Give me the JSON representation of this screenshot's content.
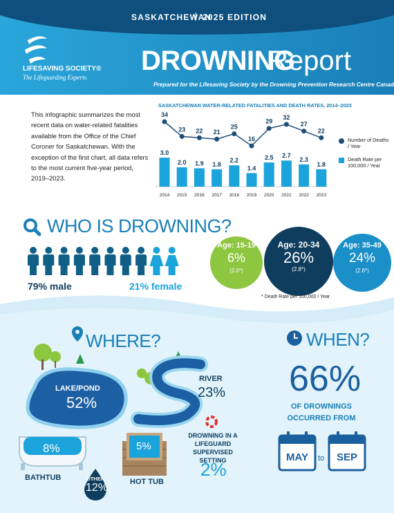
{
  "header": {
    "region": "SASKATCHEWAN",
    "edition": "2025 EDITION"
  },
  "logo": {
    "name": "LIFESAVING SOCIETY®",
    "tagline": "The Lifeguarding Experts"
  },
  "title": {
    "main": "DROWNING",
    "sub": "Report"
  },
  "subtitle": "Prepared for the Lifesaving Society by the Drowning Prevention Research Centre Canada",
  "intro": "This infographic summarizes the most recent data on water-related fatalities available from the Office of the Chief Coroner for Saskatchewan. With the exception of the first chart, all data refers to the most current five-year period, 2019–2023.",
  "chart_data": {
    "type": "combo",
    "title": "SASKATCHEWAN WATER-RELATED FATALITIES AND DEATH RATES, 2014–2023",
    "categories": [
      "2014",
      "2015",
      "2016",
      "2017",
      "2018",
      "2019",
      "2020",
      "2021",
      "2022",
      "2023"
    ],
    "series": [
      {
        "name": "Number of Deaths / Year",
        "type": "line",
        "axis": "y2",
        "color": "#1d4f78",
        "values": [
          34,
          23,
          22,
          21,
          25,
          16,
          29,
          32,
          27,
          22
        ]
      },
      {
        "name": "Death Rate per 100,000 / Year",
        "type": "bar",
        "color": "#1ba3db",
        "values": [
          3,
          2,
          1.9,
          1.8,
          2.2,
          1.4,
          2.5,
          2.7,
          2.3,
          1.8
        ],
        "value_labels": [
          "3.0",
          "2.0",
          "1.9",
          "1.8",
          "2.2",
          "1.4",
          "2.5",
          "2.7",
          "2.3",
          "1.8"
        ]
      }
    ]
  },
  "who": {
    "heading": "WHO IS DROWNING?",
    "male": "79% male",
    "female": "21% female",
    "ages": [
      {
        "label": "Age: 15-19",
        "share": "6%",
        "rate": "(2.0*)"
      },
      {
        "label": "Age: 20-34",
        "share": "26%",
        "rate": "(2.8*)"
      },
      {
        "label": "Age: 35-49",
        "share": "24%",
        "rate": "(2.6*)"
      }
    ],
    "footnote": "* Death Rate per 100,000 / Year"
  },
  "where": {
    "heading": "WHERE?",
    "lake": {
      "label": "LAKE/POND",
      "share": "52%"
    },
    "river": {
      "label": "RIVER",
      "share": "23%"
    },
    "bathtub": {
      "label": "BATHTUB",
      "share": "8%"
    },
    "other": {
      "label": "OTHER",
      "share": "12%"
    },
    "hot_tub": {
      "label": "HOT TUB",
      "share": "5%"
    },
    "lifeguard": {
      "label": "DROWNING IN A LIFEGUARD SUPERVISED SETTING",
      "share": "2%"
    }
  },
  "when": {
    "heading": "WHEN?",
    "share": "66%",
    "text": "OF DROWNINGS OCCURRED FROM",
    "from": "MAY",
    "connector": "to",
    "to": "SEP"
  }
}
